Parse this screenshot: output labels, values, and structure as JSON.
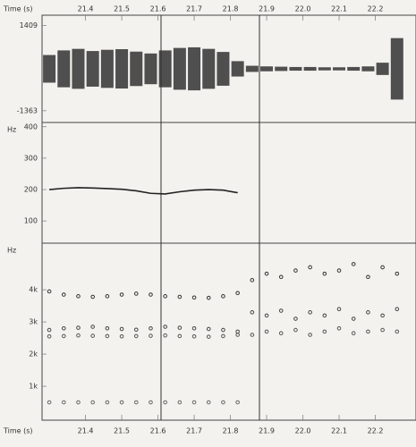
{
  "chart_data": [
    {
      "type": "waveform",
      "xlabel": "Time (s)",
      "xlim": [
        21.28,
        22.3
      ],
      "xticks": [
        21.4,
        21.5,
        21.6,
        21.7,
        21.8,
        21.9,
        {
          "value": 22.0,
          "label": "22.0"
        },
        22.1,
        22.2
      ],
      "ylim": [
        -1600,
        1600
      ],
      "yticks": [
        1409,
        -1363
      ],
      "color": "#333333",
      "x": [
        21.3,
        21.34,
        21.38,
        21.42,
        21.46,
        21.5,
        21.54,
        21.58,
        21.62,
        21.66,
        21.7,
        21.74,
        21.78,
        21.82,
        21.86,
        21.9,
        21.94,
        21.98,
        22.02,
        22.06,
        22.1,
        22.14,
        22.18,
        22.22,
        22.26
      ],
      "values": [
        450,
        600,
        650,
        580,
        620,
        640,
        560,
        500,
        600,
        680,
        700,
        650,
        550,
        250,
        100,
        80,
        70,
        60,
        60,
        50,
        50,
        60,
        80,
        200,
        1000
      ]
    },
    {
      "type": "line",
      "ylabel": "Hz",
      "ylim": [
        35,
        405
      ],
      "yticks": [
        400,
        300,
        200,
        100
      ],
      "color": "#222222",
      "x": [
        21.3,
        21.34,
        21.38,
        21.42,
        21.46,
        21.5,
        21.54,
        21.58,
        21.62,
        21.66,
        21.7,
        21.74,
        21.78,
        21.82
      ],
      "values": [
        200,
        204,
        206,
        205,
        203,
        201,
        196,
        188,
        186,
        193,
        198,
        200,
        198,
        190
      ]
    },
    {
      "type": "scatter",
      "ylabel": "Hz",
      "ylim": [
        0,
        5450
      ],
      "yticks": [
        {
          "value": 4000,
          "label": "4k"
        },
        {
          "value": 3000,
          "label": "3k"
        },
        {
          "value": 2000,
          "label": "2k"
        },
        {
          "value": 1000,
          "label": "1k"
        }
      ],
      "x": [
        21.3,
        21.34,
        21.38,
        21.42,
        21.46,
        21.5,
        21.54,
        21.58,
        21.62,
        21.66,
        21.7,
        21.74,
        21.78,
        21.82,
        21.86,
        21.9,
        21.94,
        21.98,
        22.02,
        22.06,
        22.1,
        22.14,
        22.18,
        22.22,
        22.26
      ],
      "series": [
        {
          "color": "#333333",
          "values": [
            3950,
            3850,
            3800,
            3780,
            3800,
            3850,
            3880,
            3850,
            3800,
            3780,
            3760,
            3750,
            3800,
            3900,
            4300,
            4500,
            4400,
            4600,
            4700,
            4500,
            4600,
            4800,
            4400,
            4700,
            4500
          ]
        },
        {
          "color": "#444444",
          "values": [
            2750,
            2800,
            2820,
            2850,
            2800,
            2780,
            2760,
            2800,
            2850,
            2820,
            2800,
            2780,
            2750,
            2700,
            3300,
            3200,
            3350,
            3100,
            3300,
            3200,
            3400,
            3100,
            3300,
            3200,
            3400
          ]
        },
        {
          "color": "#555555",
          "values": [
            2550,
            2560,
            2580,
            2570,
            2560,
            2550,
            2560,
            2570,
            2580,
            2560,
            2550,
            2540,
            2560,
            2600,
            2600,
            2700,
            2650,
            2750,
            2600,
            2700,
            2800,
            2650,
            2700,
            2750,
            2700
          ]
        },
        {
          "color": "#666666",
          "values": [
            500,
            500,
            500,
            500,
            500,
            500,
            500,
            500,
            500,
            500,
            500,
            500,
            500,
            500,
            null,
            null,
            null,
            null,
            null,
            null,
            null,
            null,
            null,
            null,
            null
          ]
        }
      ]
    }
  ]
}
